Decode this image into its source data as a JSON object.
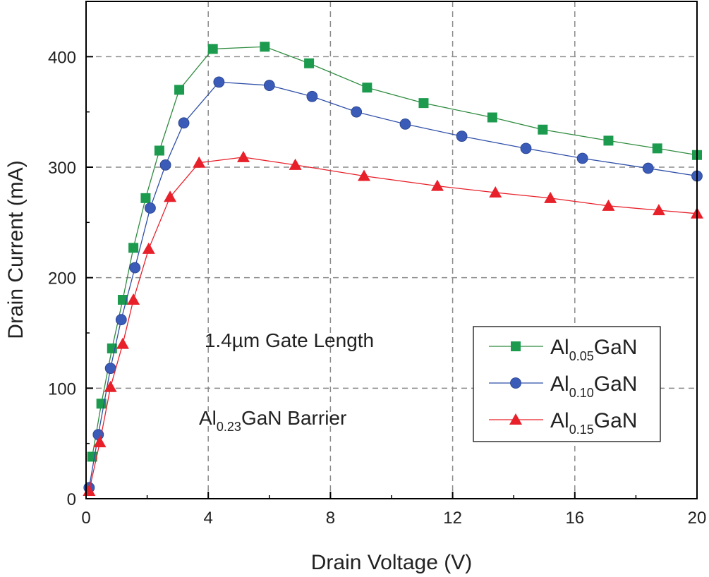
{
  "chart_data": {
    "type": "line",
    "title": "",
    "xlabel": "Drain Voltage (V)",
    "ylabel": "Drain Current (mA)",
    "xlim": [
      0,
      20
    ],
    "ylim": [
      0,
      450
    ],
    "xticks": [
      0,
      4,
      8,
      12,
      16,
      20
    ],
    "yticks": [
      0,
      100,
      200,
      300,
      400
    ],
    "grid": true,
    "legend_position": "bottom-right",
    "annotations": [
      {
        "text": "1.4µm Gate Length"
      },
      {
        "prefix": "Al",
        "sub": "0.23",
        "suffix": "GaN Barrier"
      }
    ],
    "series": [
      {
        "name": "Al0.05GaN",
        "name_prefix": "Al",
        "name_sub": "0.05",
        "name_suffix": "GaN",
        "color": "#2e8b3e",
        "marker_color": "#1c9b4e",
        "marker": "square",
        "x": [
          0.2,
          0.5,
          0.85,
          1.2,
          1.55,
          1.95,
          2.4,
          3.05,
          4.15,
          5.85,
          7.3,
          9.2,
          11.05,
          13.3,
          14.95,
          17.1,
          18.7,
          20.0
        ],
        "y": [
          38,
          86,
          136,
          180,
          227,
          272,
          315,
          370,
          407,
          409,
          394,
          372,
          358,
          345,
          334,
          324,
          317,
          311
        ]
      },
      {
        "name": "Al0.10GaN",
        "name_prefix": "Al",
        "name_sub": "0.10",
        "name_suffix": "GaN",
        "color": "#2f4fa8",
        "marker_color": "#3a5bb8",
        "marker": "circle",
        "x": [
          0.1,
          0.4,
          0.8,
          1.15,
          1.6,
          2.1,
          2.6,
          3.2,
          4.35,
          6.0,
          7.4,
          8.85,
          10.45,
          12.3,
          14.4,
          16.25,
          18.4,
          20.0
        ],
        "y": [
          10,
          58,
          118,
          162,
          209,
          263,
          302,
          340,
          377,
          374,
          364,
          350,
          339,
          328,
          317,
          308,
          299,
          292
        ]
      },
      {
        "name": "Al0.15GaN",
        "name_prefix": "Al",
        "name_sub": "0.15",
        "name_suffix": "GaN",
        "color": "#e8202a",
        "marker_color": "#e8202a",
        "marker": "triangle",
        "x": [
          0.1,
          0.45,
          0.8,
          1.2,
          1.55,
          2.05,
          2.75,
          3.7,
          5.15,
          6.85,
          9.1,
          11.5,
          13.4,
          15.2,
          17.1,
          18.75,
          20.0
        ],
        "y": [
          7,
          51,
          101,
          140,
          180,
          226,
          273,
          304,
          309,
          302,
          292,
          283,
          277,
          272,
          265,
          261,
          258
        ]
      }
    ]
  }
}
